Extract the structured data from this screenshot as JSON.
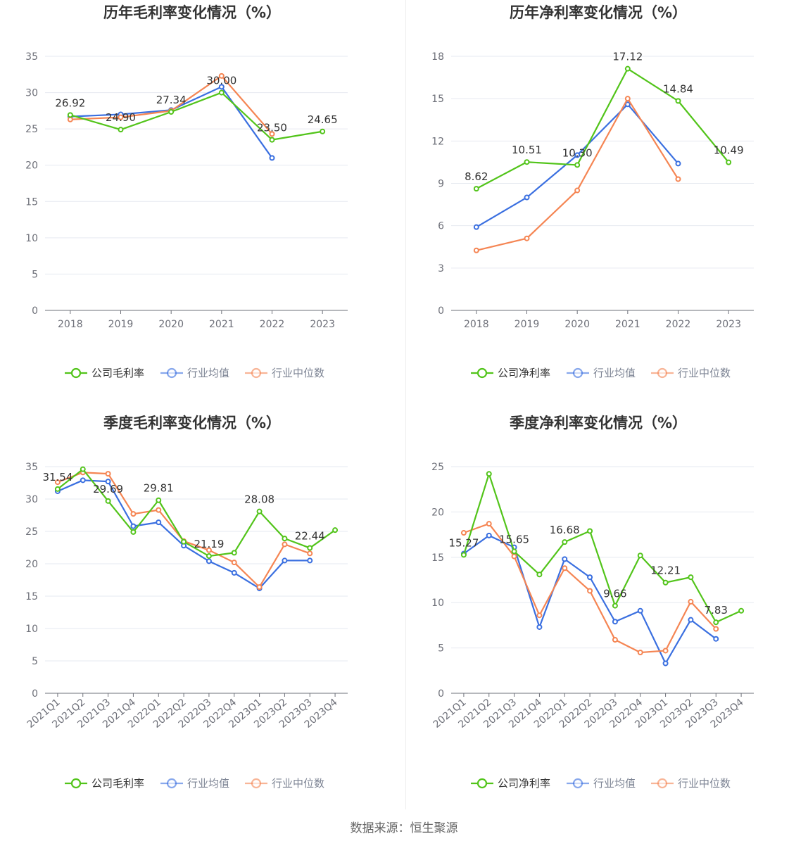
{
  "colors": {
    "company": "#52c41a",
    "avg": "#3a6fe0",
    "median": "#f58553"
  },
  "source": "数据来源：恒生聚源",
  "chart_data": [
    {
      "type": "line",
      "title": "历年毛利率变化情况（%）",
      "categories": [
        "2018",
        "2019",
        "2020",
        "2021",
        "2022",
        "2023"
      ],
      "ylim": [
        0,
        35
      ],
      "yticks": [
        0,
        5,
        10,
        15,
        20,
        25,
        30,
        35
      ],
      "series": [
        {
          "name": "公司毛利率",
          "role": "company",
          "values": [
            26.92,
            24.9,
            27.34,
            30.0,
            23.5,
            24.65
          ]
        },
        {
          "name": "行业均值",
          "role": "avg",
          "values": [
            26.7,
            27.0,
            27.6,
            30.8,
            21.0,
            null
          ]
        },
        {
          "name": "行业中位数",
          "role": "median",
          "values": [
            26.3,
            26.6,
            27.5,
            32.3,
            24.3,
            null
          ]
        }
      ],
      "labels": [
        {
          "i": 0,
          "text": "26.92"
        },
        {
          "i": 1,
          "text": "24.90"
        },
        {
          "i": 2,
          "text": "27.34"
        },
        {
          "i": 3,
          "text": "30.00"
        },
        {
          "i": 4,
          "text": "23.50"
        },
        {
          "i": 5,
          "text": "24.65"
        }
      ],
      "legend": [
        "公司毛利率",
        "行业均值",
        "行业中位数"
      ],
      "rotate_x": false
    },
    {
      "type": "line",
      "title": "历年净利率变化情况（%）",
      "categories": [
        "2018",
        "2019",
        "2020",
        "2021",
        "2022",
        "2023"
      ],
      "ylim": [
        0,
        18
      ],
      "yticks": [
        0,
        3,
        6,
        9,
        12,
        15,
        18
      ],
      "series": [
        {
          "name": "公司净利率",
          "role": "company",
          "values": [
            8.62,
            10.51,
            10.3,
            17.12,
            14.84,
            10.49
          ]
        },
        {
          "name": "行业均值",
          "role": "avg",
          "values": [
            5.9,
            8.0,
            11.0,
            14.6,
            10.4,
            null
          ]
        },
        {
          "name": "行业中位数",
          "role": "median",
          "values": [
            4.25,
            5.1,
            8.5,
            15.0,
            9.3,
            null
          ]
        }
      ],
      "labels": [
        {
          "i": 0,
          "text": "8.62"
        },
        {
          "i": 1,
          "text": "10.51"
        },
        {
          "i": 2,
          "text": "10.30"
        },
        {
          "i": 3,
          "text": "17.12"
        },
        {
          "i": 4,
          "text": "14.84"
        },
        {
          "i": 5,
          "text": "10.49"
        }
      ],
      "legend": [
        "公司净利率",
        "行业均值",
        "行业中位数"
      ],
      "rotate_x": false
    },
    {
      "type": "line",
      "title": "季度毛利率变化情况（%）",
      "categories": [
        "2021Q1",
        "2021Q2",
        "2021Q3",
        "2021Q4",
        "2022Q1",
        "2022Q2",
        "2022Q3",
        "2022Q4",
        "2023Q1",
        "2023Q2",
        "2023Q3",
        "2023Q4"
      ],
      "ylim": [
        0,
        35
      ],
      "yticks": [
        0,
        5,
        10,
        15,
        20,
        25,
        30,
        35
      ],
      "series": [
        {
          "name": "公司毛利率",
          "role": "company",
          "values": [
            31.54,
            34.6,
            29.69,
            24.9,
            29.81,
            23.4,
            21.19,
            21.7,
            28.08,
            23.9,
            22.44,
            25.2
          ]
        },
        {
          "name": "行业均值",
          "role": "avg",
          "values": [
            31.2,
            32.9,
            32.7,
            25.8,
            26.4,
            22.8,
            20.4,
            18.6,
            16.2,
            20.5,
            20.5,
            null
          ]
        },
        {
          "name": "行业中位数",
          "role": "median",
          "values": [
            32.6,
            34.1,
            33.9,
            27.7,
            28.3,
            23.5,
            22.1,
            20.2,
            16.4,
            23.0,
            21.6,
            null
          ]
        }
      ],
      "labels": [
        {
          "i": 0,
          "text": "31.54"
        },
        {
          "i": 2,
          "text": "29.69"
        },
        {
          "i": 4,
          "text": "29.81"
        },
        {
          "i": 6,
          "text": "21.19"
        },
        {
          "i": 8,
          "text": "28.08"
        },
        {
          "i": 10,
          "text": "22.44"
        }
      ],
      "legend": [
        "公司毛利率",
        "行业均值",
        "行业中位数"
      ],
      "rotate_x": true
    },
    {
      "type": "line",
      "title": "季度净利率变化情况（%）",
      "categories": [
        "2021Q1",
        "2021Q2",
        "2021Q3",
        "2021Q4",
        "2022Q1",
        "2022Q2",
        "2022Q3",
        "2022Q4",
        "2023Q1",
        "2023Q2",
        "2023Q3",
        "2023Q4"
      ],
      "ylim": [
        0,
        25
      ],
      "yticks": [
        0,
        5,
        10,
        15,
        20,
        25
      ],
      "series": [
        {
          "name": "公司净利率",
          "role": "company",
          "values": [
            15.27,
            24.2,
            15.65,
            13.1,
            16.68,
            17.9,
            9.66,
            15.2,
            12.21,
            12.8,
            7.83,
            9.1
          ]
        },
        {
          "name": "行业均值",
          "role": "avg",
          "values": [
            15.4,
            17.4,
            16.1,
            7.3,
            14.8,
            12.8,
            7.9,
            9.1,
            3.3,
            8.1,
            6.0,
            null
          ]
        },
        {
          "name": "行业中位数",
          "role": "median",
          "values": [
            17.7,
            18.7,
            15.1,
            8.6,
            13.8,
            11.3,
            5.9,
            4.5,
            4.7,
            10.1,
            7.1,
            null
          ]
        }
      ],
      "labels": [
        {
          "i": 0,
          "text": "15.27"
        },
        {
          "i": 2,
          "text": "15.65"
        },
        {
          "i": 4,
          "text": "16.68"
        },
        {
          "i": 6,
          "text": "9.66"
        },
        {
          "i": 8,
          "text": "12.21"
        },
        {
          "i": 10,
          "text": "7.83"
        }
      ],
      "legend": [
        "公司净利率",
        "行业均值",
        "行业中位数"
      ],
      "rotate_x": true
    }
  ]
}
